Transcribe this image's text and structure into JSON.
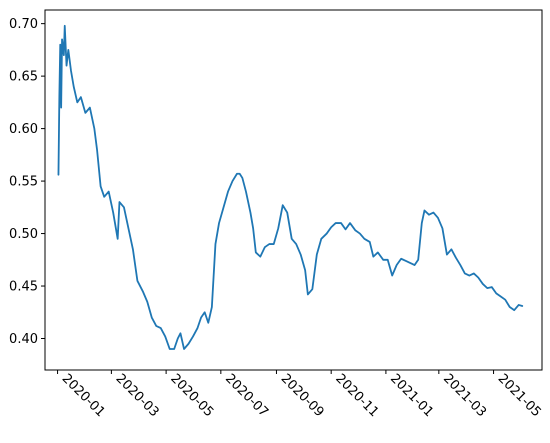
{
  "chart_data": {
    "type": "line",
    "title": "",
    "xlabel": "",
    "ylabel": "",
    "x_axis_type": "date",
    "xlim": [
      "2019-12-18",
      "2021-06-24"
    ],
    "ylim": [
      0.37,
      0.713
    ],
    "grid": false,
    "legend": "none",
    "x_ticks": [
      "2020-01",
      "2020-03",
      "2020-05",
      "2020-07",
      "2020-09",
      "2020-11",
      "2021-01",
      "2021-03",
      "2021-05"
    ],
    "y_ticks": [
      "0.40",
      "0.45",
      "0.50",
      "0.55",
      "0.60",
      "0.65",
      "0.70"
    ],
    "series": [
      {
        "color": "#1f77b4",
        "points": [
          [
            "2020-01-02",
            0.556
          ],
          [
            "2020-01-03",
            0.63
          ],
          [
            "2020-01-04",
            0.68
          ],
          [
            "2020-01-05",
            0.62
          ],
          [
            "2020-01-06",
            0.685
          ],
          [
            "2020-01-08",
            0.67
          ],
          [
            "2020-01-09",
            0.698
          ],
          [
            "2020-01-11",
            0.66
          ],
          [
            "2020-01-13",
            0.675
          ],
          [
            "2020-01-16",
            0.655
          ],
          [
            "2020-01-19",
            0.64
          ],
          [
            "2020-01-23",
            0.625
          ],
          [
            "2020-01-27",
            0.63
          ],
          [
            "2020-02-01",
            0.615
          ],
          [
            "2020-02-06",
            0.62
          ],
          [
            "2020-02-11",
            0.6
          ],
          [
            "2020-02-14",
            0.58
          ],
          [
            "2020-02-18",
            0.545
          ],
          [
            "2020-02-22",
            0.535
          ],
          [
            "2020-02-27",
            0.54
          ],
          [
            "2020-03-03",
            0.52
          ],
          [
            "2020-03-08",
            0.495
          ],
          [
            "2020-03-10",
            0.53
          ],
          [
            "2020-03-15",
            0.525
          ],
          [
            "2020-03-20",
            0.505
          ],
          [
            "2020-03-25",
            0.485
          ],
          [
            "2020-03-30",
            0.455
          ],
          [
            "2020-04-05",
            0.445
          ],
          [
            "2020-04-10",
            0.435
          ],
          [
            "2020-04-15",
            0.42
          ],
          [
            "2020-04-20",
            0.412
          ],
          [
            "2020-04-25",
            0.41
          ],
          [
            "2020-04-30",
            0.402
          ],
          [
            "2020-05-05",
            0.39
          ],
          [
            "2020-05-10",
            0.39
          ],
          [
            "2020-05-14",
            0.4
          ],
          [
            "2020-05-17",
            0.405
          ],
          [
            "2020-05-21",
            0.39
          ],
          [
            "2020-05-26",
            0.395
          ],
          [
            "2020-05-31",
            0.402
          ],
          [
            "2020-06-05",
            0.41
          ],
          [
            "2020-06-09",
            0.42
          ],
          [
            "2020-06-13",
            0.425
          ],
          [
            "2020-06-17",
            0.415
          ],
          [
            "2020-06-21",
            0.43
          ],
          [
            "2020-06-25",
            0.49
          ],
          [
            "2020-06-29",
            0.51
          ],
          [
            "2020-07-04",
            0.525
          ],
          [
            "2020-07-09",
            0.54
          ],
          [
            "2020-07-14",
            0.55
          ],
          [
            "2020-07-19",
            0.557
          ],
          [
            "2020-07-22",
            0.557
          ],
          [
            "2020-07-25",
            0.553
          ],
          [
            "2020-07-29",
            0.54
          ],
          [
            "2020-08-03",
            0.52
          ],
          [
            "2020-08-06",
            0.505
          ],
          [
            "2020-08-09",
            0.482
          ],
          [
            "2020-08-14",
            0.478
          ],
          [
            "2020-08-19",
            0.487
          ],
          [
            "2020-08-24",
            0.49
          ],
          [
            "2020-08-29",
            0.49
          ],
          [
            "2020-09-03",
            0.505
          ],
          [
            "2020-09-08",
            0.527
          ],
          [
            "2020-09-13",
            0.52
          ],
          [
            "2020-09-18",
            0.495
          ],
          [
            "2020-09-23",
            0.49
          ],
          [
            "2020-09-28",
            0.48
          ],
          [
            "2020-10-03",
            0.465
          ],
          [
            "2020-10-06",
            0.442
          ],
          [
            "2020-10-11",
            0.447
          ],
          [
            "2020-10-16",
            0.48
          ],
          [
            "2020-10-21",
            0.495
          ],
          [
            "2020-10-27",
            0.5
          ],
          [
            "2020-11-01",
            0.506
          ],
          [
            "2020-11-06",
            0.51
          ],
          [
            "2020-11-12",
            0.51
          ],
          [
            "2020-11-17",
            0.504
          ],
          [
            "2020-11-22",
            0.51
          ],
          [
            "2020-11-28",
            0.503
          ],
          [
            "2020-12-03",
            0.5
          ],
          [
            "2020-12-08",
            0.495
          ],
          [
            "2020-12-14",
            0.492
          ],
          [
            "2020-12-18",
            0.478
          ],
          [
            "2020-12-23",
            0.482
          ],
          [
            "2020-12-29",
            0.475
          ],
          [
            "2021-01-03",
            0.475
          ],
          [
            "2021-01-08",
            0.46
          ],
          [
            "2021-01-13",
            0.47
          ],
          [
            "2021-01-18",
            0.476
          ],
          [
            "2021-01-23",
            0.474
          ],
          [
            "2021-01-28",
            0.472
          ],
          [
            "2021-02-02",
            0.47
          ],
          [
            "2021-02-06",
            0.475
          ],
          [
            "2021-02-10",
            0.51
          ],
          [
            "2021-02-13",
            0.522
          ],
          [
            "2021-02-18",
            0.518
          ],
          [
            "2021-02-23",
            0.52
          ],
          [
            "2021-02-28",
            0.515
          ],
          [
            "2021-03-05",
            0.505
          ],
          [
            "2021-03-10",
            0.48
          ],
          [
            "2021-03-15",
            0.485
          ],
          [
            "2021-03-20",
            0.477
          ],
          [
            "2021-03-25",
            0.47
          ],
          [
            "2021-03-30",
            0.462
          ],
          [
            "2021-04-04",
            0.46
          ],
          [
            "2021-04-09",
            0.462
          ],
          [
            "2021-04-14",
            0.458
          ],
          [
            "2021-04-19",
            0.452
          ],
          [
            "2021-04-24",
            0.448
          ],
          [
            "2021-04-29",
            0.449
          ],
          [
            "2021-05-04",
            0.443
          ],
          [
            "2021-05-09",
            0.44
          ],
          [
            "2021-05-14",
            0.437
          ],
          [
            "2021-05-19",
            0.43
          ],
          [
            "2021-05-24",
            0.427
          ],
          [
            "2021-05-29",
            0.432
          ],
          [
            "2021-06-02",
            0.431
          ]
        ]
      }
    ]
  }
}
